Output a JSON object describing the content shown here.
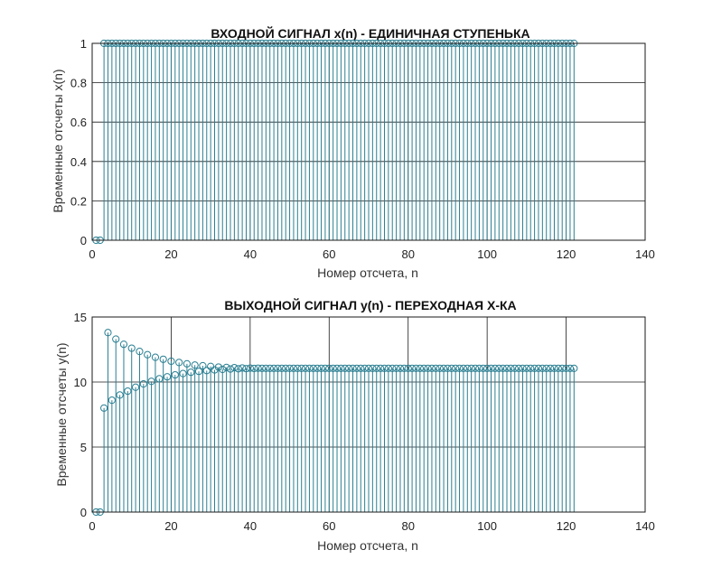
{
  "colors": {
    "stem": "#2a7f92",
    "grid": "#1a1a1a",
    "axis": "#1a1a1a",
    "text": "#222222",
    "background": "#ffffff"
  },
  "chart_data": [
    {
      "type": "stem",
      "title": "ВХОДНОЙ СИГНАЛ x(n)  - ЕДИНИЧНАЯ СТУПЕНЬКА",
      "xlabel": "Номер отсчета, n",
      "ylabel": "Временные отсчеты x(n)",
      "xlim": [
        0,
        140
      ],
      "ylim": [
        0,
        1
      ],
      "xticks": [
        "0",
        "20",
        "40",
        "60",
        "80",
        "100",
        "120",
        "140"
      ],
      "yticks": [
        "0",
        "0.2",
        "0.4",
        "0.6",
        "0.8",
        "1"
      ],
      "grid": true,
      "marker": "circle",
      "x": [
        1,
        2,
        3,
        4,
        5,
        6,
        7,
        8,
        9,
        10,
        11,
        12,
        13,
        14,
        15,
        16,
        17,
        18,
        19,
        20,
        21,
        22,
        23,
        24,
        25,
        26,
        27,
        28,
        29,
        30,
        31,
        32,
        33,
        34,
        35,
        36,
        37,
        38,
        39,
        40,
        41,
        42,
        43,
        44,
        45,
        46,
        47,
        48,
        49,
        50,
        51,
        52,
        53,
        54,
        55,
        56,
        57,
        58,
        59,
        60,
        61,
        62,
        63,
        64,
        65,
        66,
        67,
        68,
        69,
        70,
        71,
        72,
        73,
        74,
        75,
        76,
        77,
        78,
        79,
        80,
        81,
        82,
        83,
        84,
        85,
        86,
        87,
        88,
        89,
        90,
        91,
        92,
        93,
        94,
        95,
        96,
        97,
        98,
        99,
        100,
        101,
        102,
        103,
        104,
        105,
        106,
        107,
        108,
        109,
        110,
        111,
        112,
        113,
        114,
        115,
        116,
        117,
        118,
        119,
        120,
        121,
        122
      ],
      "y": [
        0,
        0,
        1,
        1,
        1,
        1,
        1,
        1,
        1,
        1,
        1,
        1,
        1,
        1,
        1,
        1,
        1,
        1,
        1,
        1,
        1,
        1,
        1,
        1,
        1,
        1,
        1,
        1,
        1,
        1,
        1,
        1,
        1,
        1,
        1,
        1,
        1,
        1,
        1,
        1,
        1,
        1,
        1,
        1,
        1,
        1,
        1,
        1,
        1,
        1,
        1,
        1,
        1,
        1,
        1,
        1,
        1,
        1,
        1,
        1,
        1,
        1,
        1,
        1,
        1,
        1,
        1,
        1,
        1,
        1,
        1,
        1,
        1,
        1,
        1,
        1,
        1,
        1,
        1,
        1,
        1,
        1,
        1,
        1,
        1,
        1,
        1,
        1,
        1,
        1,
        1,
        1,
        1,
        1,
        1,
        1,
        1,
        1,
        1,
        1,
        1,
        1,
        1,
        1,
        1,
        1,
        1,
        1,
        1,
        1,
        1,
        1,
        1,
        1,
        1,
        1,
        1,
        1,
        1,
        1,
        1,
        1
      ]
    },
    {
      "type": "stem",
      "title": "ВЫХОДНОЙ СИГНАЛ y(n) - ПЕРЕХОДНАЯ Х-КА",
      "xlabel": "Номер отсчета, n",
      "ylabel": "Временные отсчеты y(n)",
      "xlim": [
        0,
        140
      ],
      "ylim": [
        0,
        15
      ],
      "xticks": [
        "0",
        "20",
        "40",
        "60",
        "80",
        "100",
        "120",
        "140"
      ],
      "yticks": [
        "0",
        "5",
        "10",
        "15"
      ],
      "grid": true,
      "marker": "circle",
      "x": [
        1,
        2,
        3,
        4,
        5,
        6,
        7,
        8,
        9,
        10,
        11,
        12,
        13,
        14,
        15,
        16,
        17,
        18,
        19,
        20,
        21,
        22,
        23,
        24,
        25,
        26,
        27,
        28,
        29,
        30,
        31,
        32,
        33,
        34,
        35,
        36,
        37,
        38,
        39,
        40,
        41,
        42,
        43,
        44,
        45,
        46,
        47,
        48,
        49,
        50,
        51,
        52,
        53,
        54,
        55,
        56,
        57,
        58,
        59,
        60,
        61,
        62,
        63,
        64,
        65,
        66,
        67,
        68,
        69,
        70,
        71,
        72,
        73,
        74,
        75,
        76,
        77,
        78,
        79,
        80,
        81,
        82,
        83,
        84,
        85,
        86,
        87,
        88,
        89,
        90,
        91,
        92,
        93,
        94,
        95,
        96,
        97,
        98,
        99,
        100,
        101,
        102,
        103,
        104,
        105,
        106,
        107,
        108,
        109,
        110,
        111,
        112,
        113,
        114,
        115,
        116,
        117,
        118,
        119,
        120,
        121,
        122
      ],
      "y": [
        0,
        0,
        8.0,
        13.8,
        8.6,
        13.3,
        9.0,
        12.9,
        9.3,
        12.6,
        9.6,
        12.35,
        9.85,
        12.1,
        10.05,
        11.9,
        10.25,
        11.75,
        10.4,
        11.6,
        10.55,
        11.5,
        10.65,
        11.4,
        10.75,
        11.3,
        10.82,
        11.25,
        10.88,
        11.2,
        10.93,
        11.15,
        10.97,
        11.12,
        11.0,
        11.1,
        11.02,
        11.08,
        11.03,
        11.07,
        11.04,
        11.06,
        11.05,
        11.05,
        11.05,
        11.05,
        11.05,
        11.05,
        11.05,
        11.05,
        11.05,
        11.05,
        11.05,
        11.05,
        11.05,
        11.05,
        11.05,
        11.05,
        11.05,
        11.05,
        11.05,
        11.05,
        11.05,
        11.05,
        11.05,
        11.05,
        11.05,
        11.05,
        11.05,
        11.05,
        11.05,
        11.05,
        11.05,
        11.05,
        11.05,
        11.05,
        11.05,
        11.05,
        11.05,
        11.05,
        11.05,
        11.05,
        11.05,
        11.05,
        11.05,
        11.05,
        11.05,
        11.05,
        11.05,
        11.05,
        11.05,
        11.05,
        11.05,
        11.05,
        11.05,
        11.05,
        11.05,
        11.05,
        11.05,
        11.05,
        11.05,
        11.05,
        11.05,
        11.05,
        11.05,
        11.05,
        11.05,
        11.05,
        11.05,
        11.05,
        11.05,
        11.05,
        11.05,
        11.05,
        11.05,
        11.05,
        11.05,
        11.05,
        11.05,
        11.05,
        11.05,
        11.05
      ]
    }
  ]
}
